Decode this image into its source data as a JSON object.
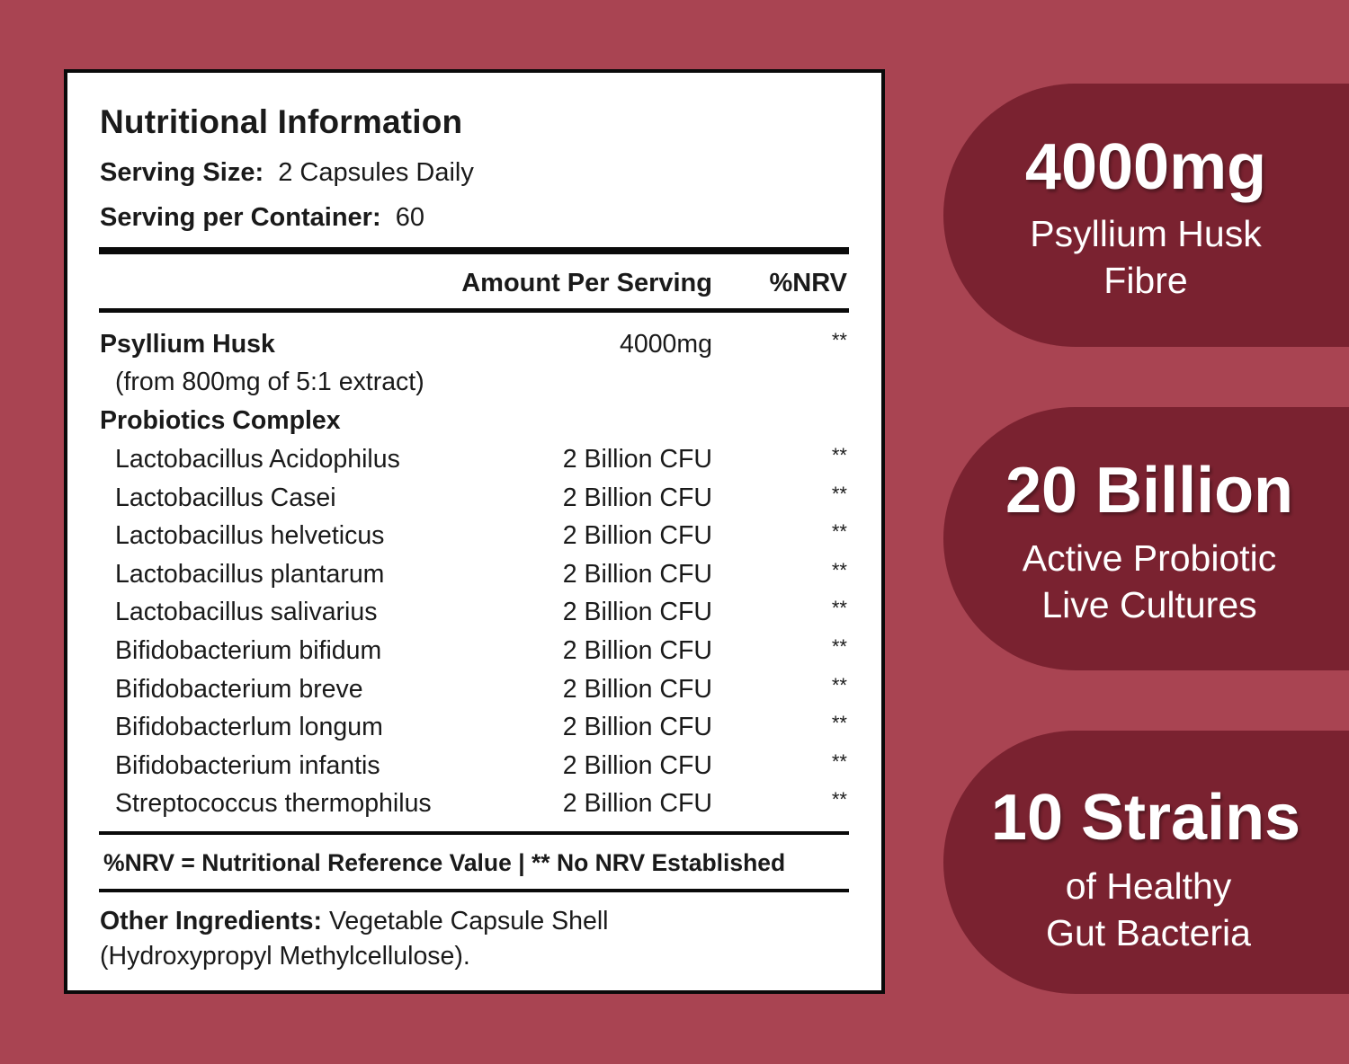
{
  "colors": {
    "background": "#A94452",
    "pill": "#7A2230",
    "panel": "#FFFFFF",
    "text": "#1A1A1A"
  },
  "label": {
    "title": "Nutritional Information",
    "serving_size_label": "Serving Size:",
    "serving_size_value": "2 Capsules Daily",
    "servings_per_container_label": "Serving per Container:",
    "servings_per_container_value": "60",
    "header_amount": "Amount Per Serving",
    "header_nrv": "%NRV",
    "rows": [
      {
        "name": "Psyllium Husk",
        "amount": "4000mg",
        "nrv": "**",
        "style": "bold"
      },
      {
        "name": "(from 800mg of 5:1 extract)",
        "amount": "",
        "nrv": "",
        "style": "indent"
      },
      {
        "name": "Probiotics Complex",
        "amount": "",
        "nrv": "",
        "style": "bold"
      },
      {
        "name": "Lactobacillus Acidophilus",
        "amount": "2 Billion CFU",
        "nrv": "**",
        "style": "indent"
      },
      {
        "name": "Lactobacillus Casei",
        "amount": "2 Billion CFU",
        "nrv": "**",
        "style": "indent"
      },
      {
        "name": "Lactobacillus helveticus",
        "amount": "2 Billion CFU",
        "nrv": "**",
        "style": "indent"
      },
      {
        "name": "Lactobacillus plantarum",
        "amount": "2 Billion CFU",
        "nrv": "**",
        "style": "indent"
      },
      {
        "name": "Lactobacillus salivarius",
        "amount": "2 Billion CFU",
        "nrv": "**",
        "style": "indent"
      },
      {
        "name": "Bifidobacterium bifidum",
        "amount": "2 Billion CFU",
        "nrv": "**",
        "style": "indent"
      },
      {
        "name": "Bifidobacterium breve",
        "amount": "2 Billion CFU",
        "nrv": "**",
        "style": "indent"
      },
      {
        "name": "Bifidobacterlum longum",
        "amount": "2 Billion CFU",
        "nrv": "**",
        "style": "indent"
      },
      {
        "name": "Bifidobacterium infantis",
        "amount": "2 Billion CFU",
        "nrv": "**",
        "style": "indent"
      },
      {
        "name": "Streptococcus thermophilus",
        "amount": "2 Billion CFU",
        "nrv": "**",
        "style": "indent"
      }
    ],
    "footnote": "%NRV = Nutritional Reference Value  |  ** No NRV Established",
    "other_ingredients_label": "Other Ingredients:",
    "other_ingredients_line1": " Vegetable Capsule Shell",
    "other_ingredients_line2": "(Hydroxypropyl Methylcellulose)."
  },
  "highlights": [
    {
      "headline": "4000mg",
      "line1": "Psyllium Husk",
      "line2": "Fibre"
    },
    {
      "headline": "20 Billion",
      "line1": "Active Probiotic",
      "line2": "Live Cultures"
    },
    {
      "headline": "10 Strains",
      "line1": "of Healthy",
      "line2": "Gut Bacteria"
    }
  ]
}
